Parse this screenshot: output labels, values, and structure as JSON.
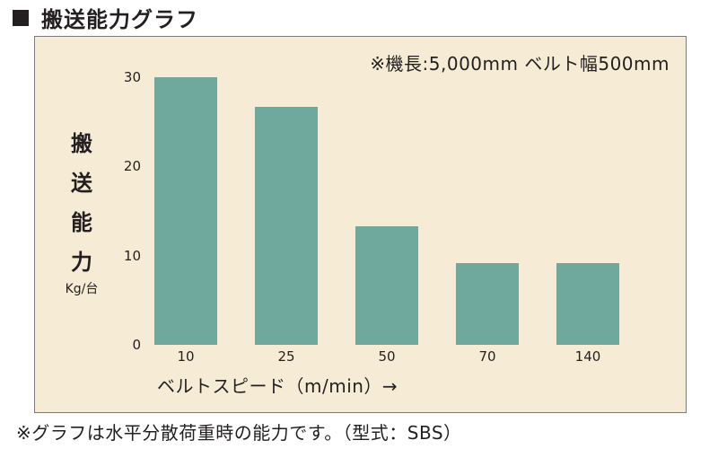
{
  "header": {
    "title": "搬送能力グラフ"
  },
  "note": "※機長:5,000mm ベルト幅500mm",
  "footnote": "※グラフは水平分散荷重時の能力です。（型式：SBS）",
  "colors": {
    "panel_bg": "#f6ecd6",
    "bar": "#6fa89c"
  },
  "chart_data": {
    "type": "bar",
    "categories": [
      "10",
      "25",
      "50",
      "70",
      "140"
    ],
    "values": [
      30,
      26.7,
      13.3,
      9.2,
      9.2
    ],
    "ylim": [
      0,
      30
    ],
    "yticks": [
      "0",
      "10",
      "20",
      "30"
    ],
    "ylabel_chars": [
      "搬",
      "送",
      "能",
      "力"
    ],
    "ylabel_unit": "Kg/台",
    "xlabel": "ベルトスピード（m/min）→",
    "grid": false,
    "legend": false
  }
}
